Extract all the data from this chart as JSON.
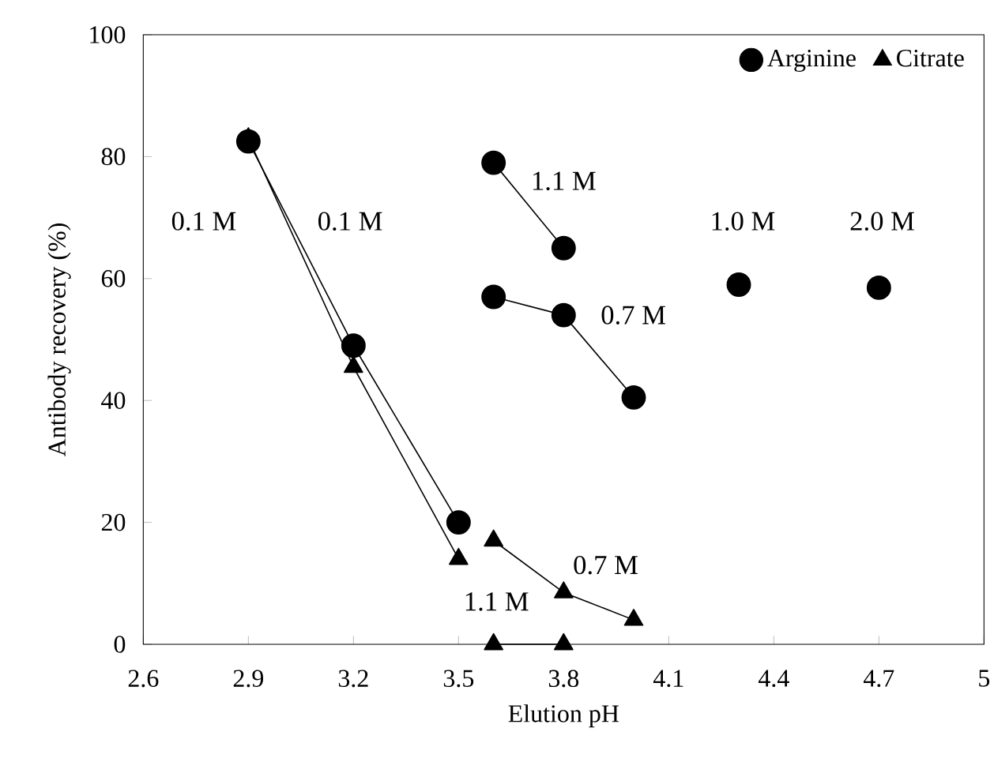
{
  "chart_data": {
    "type": "line",
    "xlabel": "Elution pH",
    "ylabel": "Antibody  recovery (%)",
    "xlim": [
      2.6,
      5
    ],
    "xticks": [
      2.6,
      2.9,
      3.2,
      3.5,
      3.8,
      4.1,
      4.4,
      4.7,
      5
    ],
    "ylim": [
      0,
      100
    ],
    "yticks": [
      0,
      20,
      40,
      60,
      80,
      100
    ],
    "grid": false,
    "legend": "top right",
    "line_style": "solid",
    "series": [
      {
        "name": "Arginine",
        "color": "#000000",
        "marker": "circle",
        "x": [
          2.9,
          3.2,
          3.5
        ],
        "values": [
          82.5,
          49,
          20
        ]
      },
      {
        "color": "#000000",
        "marker": "circle",
        "x": [
          3.6,
          3.8
        ],
        "values": [
          79,
          65
        ]
      },
      {
        "color": "#000000",
        "marker": "circle",
        "x": [
          3.6,
          3.8,
          4.0
        ],
        "values": [
          57,
          54,
          40.5
        ]
      },
      {
        "color": "#000000",
        "marker": "circle",
        "x": [
          4.3
        ],
        "values": [
          59
        ]
      },
      {
        "color": "#000000",
        "marker": "circle",
        "x": [
          4.7
        ],
        "values": [
          58.5
        ]
      },
      {
        "name": "Citrate",
        "color": "#000000",
        "marker": "triangle",
        "x": [
          2.9,
          3.2,
          3.5
        ],
        "values": [
          83,
          45.5,
          14
        ]
      },
      {
        "color": "#000000",
        "marker": "triangle",
        "x": [
          3.6,
          3.8,
          4.0
        ],
        "values": [
          17,
          8.5,
          4
        ]
      },
      {
        "color": "#000000",
        "marker": "triangle",
        "x": [
          3.6,
          3.8
        ],
        "values": [
          0,
          0
        ]
      }
    ],
    "annotations": [
      "0.1 M",
      "0.1 M",
      "1.1 M",
      "0.7 M",
      "1.0 M",
      "2.0 M",
      "0.7 M",
      "1.1 M"
    ]
  }
}
